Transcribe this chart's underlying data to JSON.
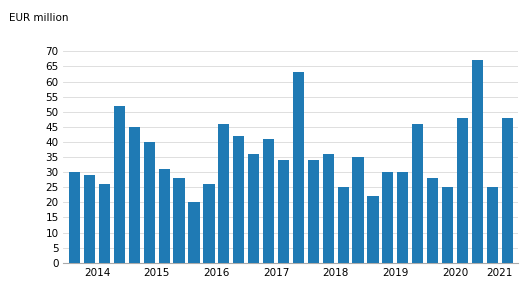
{
  "values": [
    30,
    29,
    26,
    52,
    45,
    40,
    31,
    28,
    20,
    26,
    46,
    42,
    36,
    41,
    34,
    63,
    34,
    36,
    25,
    35,
    22,
    30,
    30,
    46,
    28,
    25,
    48,
    67,
    25,
    48
  ],
  "year_labels": [
    "2014",
    "2015",
    "2016",
    "2017",
    "2018",
    "2019",
    "2020",
    "2021"
  ],
  "bar_color": "#1f7ab4",
  "ylabel": "EUR million",
  "ylim": [
    0,
    75
  ],
  "yticks": [
    0,
    5,
    10,
    15,
    20,
    25,
    30,
    35,
    40,
    45,
    50,
    55,
    60,
    65,
    70
  ],
  "background_color": "#ffffff",
  "grid_color": "#d9d9d9"
}
